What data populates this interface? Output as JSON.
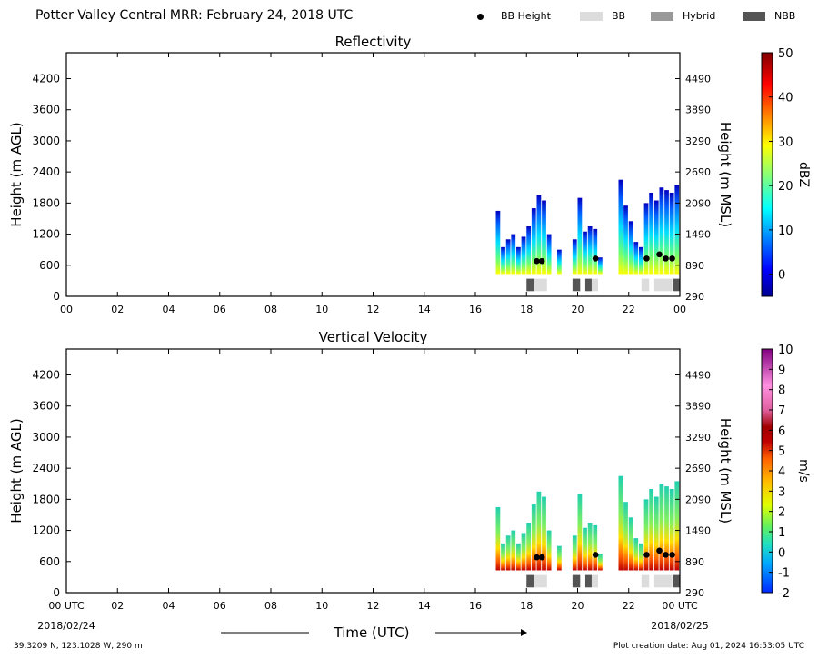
{
  "header": {
    "title": "Potter Valley Central MRR:  February 24, 2018 UTC"
  },
  "legend": [
    {
      "label": "BB Height",
      "type": "dot",
      "color": "#000000"
    },
    {
      "label": "BB",
      "type": "box",
      "color": "#dcdcdc"
    },
    {
      "label": "Hybrid",
      "type": "box",
      "color": "#999999"
    },
    {
      "label": "NBB",
      "type": "box",
      "color": "#555555"
    }
  ],
  "chart_data": [
    {
      "type": "heatmap",
      "title": "Reflectivity",
      "ylabel": "Height (m AGL)",
      "y2label": "Height (m MSL)",
      "ylim": [
        0,
        4700
      ],
      "yticks": [
        "0",
        "600",
        "1200",
        "1800",
        "2400",
        "3000",
        "3600",
        "4200"
      ],
      "y2ticks": [
        "290",
        "890",
        "1490",
        "2090",
        "2690",
        "3290",
        "3890",
        "4490"
      ],
      "xlim": [
        0,
        24
      ],
      "xticks": [
        "00",
        "02",
        "04",
        "06",
        "08",
        "10",
        "12",
        "14",
        "16",
        "18",
        "20",
        "22",
        "00"
      ],
      "colorbar": {
        "label": "dBZ",
        "range": [
          -5,
          50
        ],
        "ticks": [
          "0",
          "10",
          "20",
          "30",
          "40",
          "50"
        ]
      },
      "echo_columns": [
        {
          "t": 16.8,
          "top": 1650
        },
        {
          "t": 17.0,
          "top": 950
        },
        {
          "t": 17.2,
          "top": 1100
        },
        {
          "t": 17.4,
          "top": 1200
        },
        {
          "t": 17.6,
          "top": 950
        },
        {
          "t": 17.8,
          "top": 1150
        },
        {
          "t": 18.0,
          "top": 1350
        },
        {
          "t": 18.2,
          "top": 1700
        },
        {
          "t": 18.4,
          "top": 1950
        },
        {
          "t": 18.6,
          "top": 1850
        },
        {
          "t": 18.8,
          "top": 1200
        },
        {
          "t": 19.2,
          "top": 900
        },
        {
          "t": 19.8,
          "top": 1100
        },
        {
          "t": 20.0,
          "top": 1900
        },
        {
          "t": 20.2,
          "top": 1250
        },
        {
          "t": 20.4,
          "top": 1350
        },
        {
          "t": 20.6,
          "top": 1300
        },
        {
          "t": 20.8,
          "top": 750
        },
        {
          "t": 21.6,
          "top": 2250
        },
        {
          "t": 21.8,
          "top": 1750
        },
        {
          "t": 22.0,
          "top": 1450
        },
        {
          "t": 22.2,
          "top": 1050
        },
        {
          "t": 22.4,
          "top": 950
        },
        {
          "t": 22.6,
          "top": 1800
        },
        {
          "t": 22.8,
          "top": 2000
        },
        {
          "t": 23.0,
          "top": 1850
        },
        {
          "t": 23.2,
          "top": 2100
        },
        {
          "t": 23.4,
          "top": 2050
        },
        {
          "t": 23.6,
          "top": 2000
        },
        {
          "t": 23.8,
          "top": 2150
        }
      ],
      "bb_heights": [
        {
          "t": 18.4,
          "h": 680
        },
        {
          "t": 18.6,
          "h": 680
        },
        {
          "t": 20.7,
          "h": 730
        },
        {
          "t": 22.7,
          "h": 730
        },
        {
          "t": 23.2,
          "h": 810
        },
        {
          "t": 23.45,
          "h": 730
        },
        {
          "t": 23.7,
          "h": 730
        }
      ],
      "classification": [
        {
          "start": 18.0,
          "end": 18.3,
          "class": "NBB"
        },
        {
          "start": 18.3,
          "end": 18.8,
          "class": "BB"
        },
        {
          "start": 19.8,
          "end": 20.1,
          "class": "NBB"
        },
        {
          "start": 20.3,
          "end": 20.55,
          "class": "NBB"
        },
        {
          "start": 20.55,
          "end": 20.8,
          "class": "BB"
        },
        {
          "start": 22.5,
          "end": 22.8,
          "class": "BB"
        },
        {
          "start": 23.0,
          "end": 23.7,
          "class": "BB"
        },
        {
          "start": 23.75,
          "end": 24.0,
          "class": "NBB"
        }
      ]
    },
    {
      "type": "heatmap",
      "title": "Vertical Velocity",
      "ylabel": "Height (m AGL)",
      "y2label": "Height (m MSL)",
      "ylim": [
        0,
        4700
      ],
      "yticks": [
        "0",
        "600",
        "1200",
        "1800",
        "2400",
        "3000",
        "3600",
        "4200"
      ],
      "y2ticks": [
        "290",
        "890",
        "1490",
        "2090",
        "2690",
        "3290",
        "3890",
        "4490"
      ],
      "xlim": [
        0,
        24
      ],
      "xticks": [
        "00 UTC",
        "02",
        "04",
        "06",
        "08",
        "10",
        "12",
        "14",
        "16",
        "18",
        "20",
        "22",
        "00 UTC"
      ],
      "xdates": [
        "2018/02/24",
        "2018/02/25"
      ],
      "xlabel": "Time (UTC)",
      "colorbar": {
        "label": "m/s",
        "range": [
          -2,
          10
        ],
        "ticks": [
          "-2",
          "-1",
          "0",
          "1",
          "2",
          "3",
          "4",
          "5",
          "6",
          "7",
          "8",
          "9",
          "10"
        ]
      },
      "echo_columns": [
        {
          "t": 16.8,
          "top": 1650
        },
        {
          "t": 17.0,
          "top": 950
        },
        {
          "t": 17.2,
          "top": 1100
        },
        {
          "t": 17.4,
          "top": 1200
        },
        {
          "t": 17.6,
          "top": 950
        },
        {
          "t": 17.8,
          "top": 1150
        },
        {
          "t": 18.0,
          "top": 1350
        },
        {
          "t": 18.2,
          "top": 1700
        },
        {
          "t": 18.4,
          "top": 1950
        },
        {
          "t": 18.6,
          "top": 1850
        },
        {
          "t": 18.8,
          "top": 1200
        },
        {
          "t": 19.2,
          "top": 900
        },
        {
          "t": 19.8,
          "top": 1100
        },
        {
          "t": 20.0,
          "top": 1900
        },
        {
          "t": 20.2,
          "top": 1250
        },
        {
          "t": 20.4,
          "top": 1350
        },
        {
          "t": 20.6,
          "top": 1300
        },
        {
          "t": 20.8,
          "top": 750
        },
        {
          "t": 21.6,
          "top": 2250
        },
        {
          "t": 21.8,
          "top": 1750
        },
        {
          "t": 22.0,
          "top": 1450
        },
        {
          "t": 22.2,
          "top": 1050
        },
        {
          "t": 22.4,
          "top": 950
        },
        {
          "t": 22.6,
          "top": 1800
        },
        {
          "t": 22.8,
          "top": 2000
        },
        {
          "t": 23.0,
          "top": 1850
        },
        {
          "t": 23.2,
          "top": 2100
        },
        {
          "t": 23.4,
          "top": 2050
        },
        {
          "t": 23.6,
          "top": 2000
        },
        {
          "t": 23.8,
          "top": 2150
        }
      ],
      "bb_heights": [
        {
          "t": 18.4,
          "h": 680
        },
        {
          "t": 18.6,
          "h": 680
        },
        {
          "t": 20.7,
          "h": 730
        },
        {
          "t": 22.7,
          "h": 730
        },
        {
          "t": 23.2,
          "h": 810
        },
        {
          "t": 23.45,
          "h": 730
        },
        {
          "t": 23.7,
          "h": 730
        }
      ],
      "classification": [
        {
          "start": 18.0,
          "end": 18.3,
          "class": "NBB"
        },
        {
          "start": 18.3,
          "end": 18.8,
          "class": "BB"
        },
        {
          "start": 19.8,
          "end": 20.1,
          "class": "NBB"
        },
        {
          "start": 20.3,
          "end": 20.55,
          "class": "NBB"
        },
        {
          "start": 20.55,
          "end": 20.8,
          "class": "BB"
        },
        {
          "start": 22.5,
          "end": 22.8,
          "class": "BB"
        },
        {
          "start": 23.0,
          "end": 23.7,
          "class": "BB"
        },
        {
          "start": 23.75,
          "end": 24.0,
          "class": "NBB"
        }
      ]
    }
  ],
  "footer": {
    "location": "39.3209 N, 123.1028 W, 290 m",
    "creation": "Plot creation date: Aug 01, 2024 16:53:05 UTC"
  }
}
